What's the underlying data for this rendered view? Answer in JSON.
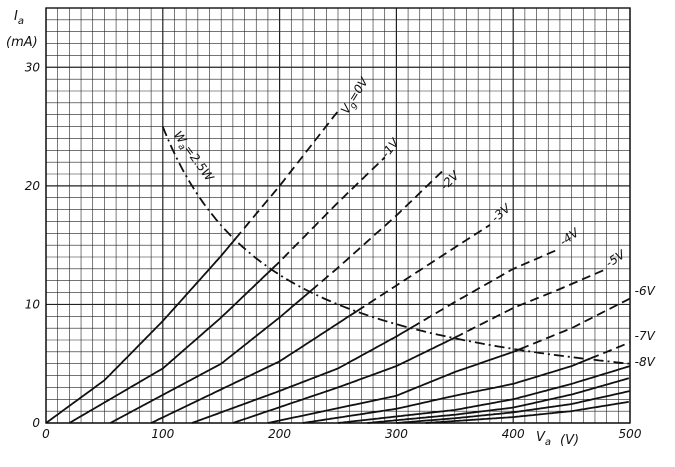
{
  "chart_data": {
    "type": "line",
    "title": "",
    "xlabel": "V_a (V)",
    "ylabel": "I_a (mA)",
    "xlim": [
      0,
      500
    ],
    "ylim": [
      0,
      35
    ],
    "grid": true,
    "x_ticks": [
      "0",
      "100",
      "200",
      "300",
      "400",
      "500"
    ],
    "y_ticks": [
      "0",
      "10",
      "20",
      "30"
    ],
    "axis_labels": {
      "y_symbol": "I",
      "y_sub": "a",
      "y_unit": "(mA)",
      "x_symbol": "V",
      "x_sub": "a",
      "x_unit": "(V)"
    },
    "series": [
      {
        "name": "Vg = 0V",
        "label": "=0V",
        "label_prefix": "V",
        "label_sub": "g",
        "style": "solid-then-dashed",
        "points": [
          [
            0,
            0
          ],
          [
            50,
            3.6
          ],
          [
            100,
            8.6
          ],
          [
            150,
            14.1
          ],
          [
            200,
            20
          ],
          [
            250,
            26.3
          ]
        ]
      },
      {
        "name": "-1V",
        "label": "-1V",
        "style": "solid-then-dashed",
        "points": [
          [
            20,
            0
          ],
          [
            100,
            4.6
          ],
          [
            150,
            8.9
          ],
          [
            200,
            13.6
          ],
          [
            250,
            18.6
          ],
          [
            290,
            22.4
          ]
        ]
      },
      {
        "name": "-2V",
        "label": "-2V",
        "style": "solid-then-dashed",
        "points": [
          [
            55,
            0
          ],
          [
            150,
            5
          ],
          [
            200,
            8.9
          ],
          [
            250,
            13.1
          ],
          [
            300,
            17.5
          ],
          [
            340,
            21.3
          ]
        ]
      },
      {
        "name": "-3V",
        "label": "-3V",
        "style": "solid-then-dashed",
        "points": [
          [
            90,
            0
          ],
          [
            200,
            5.2
          ],
          [
            250,
            8.4
          ],
          [
            300,
            11.6
          ],
          [
            350,
            14.8
          ],
          [
            380,
            16.7
          ]
        ]
      },
      {
        "name": "-4V",
        "label": "-4V",
        "style": "solid-then-dashed",
        "points": [
          [
            125,
            0
          ],
          [
            200,
            2.7
          ],
          [
            250,
            4.6
          ],
          [
            300,
            7.3
          ],
          [
            350,
            10.2
          ],
          [
            400,
            13
          ],
          [
            440,
            14.7
          ]
        ]
      },
      {
        "name": "-5V",
        "label": "-5V",
        "style": "solid-then-dashed",
        "points": [
          [
            160,
            0
          ],
          [
            250,
            3
          ],
          [
            300,
            4.8
          ],
          [
            350,
            7.2
          ],
          [
            400,
            9.7
          ],
          [
            440,
            11.3
          ],
          [
            480,
            13
          ]
        ]
      },
      {
        "name": "-6V",
        "label": "-6V",
        "style": "solid-then-dashed",
        "points": [
          [
            190,
            0
          ],
          [
            300,
            2.3
          ],
          [
            350,
            4.3
          ],
          [
            400,
            6
          ],
          [
            450,
            8
          ],
          [
            500,
            10.5
          ]
        ]
      },
      {
        "name": "-7V",
        "label": "-7V",
        "style": "solid-then-dashed",
        "points": [
          [
            220,
            0
          ],
          [
            300,
            1.2
          ],
          [
            350,
            2.3
          ],
          [
            400,
            3.3
          ],
          [
            450,
            4.8
          ],
          [
            500,
            6.8
          ]
        ]
      },
      {
        "name": "-8V",
        "label": "-8V",
        "style": "solid",
        "points": [
          [
            250,
            0
          ],
          [
            350,
            1.1
          ],
          [
            400,
            2
          ],
          [
            450,
            3.3
          ],
          [
            500,
            4.8
          ]
        ]
      },
      {
        "name": "",
        "label": "",
        "style": "solid",
        "points": [
          [
            275,
            0
          ],
          [
            350,
            0.7
          ],
          [
            400,
            1.3
          ],
          [
            450,
            2.4
          ],
          [
            500,
            3.8
          ]
        ]
      },
      {
        "name": "",
        "label": "",
        "style": "solid",
        "points": [
          [
            300,
            0
          ],
          [
            350,
            0.4
          ],
          [
            400,
            0.9
          ],
          [
            450,
            1.6
          ],
          [
            500,
            2.7
          ]
        ]
      },
      {
        "name": "",
        "label": "",
        "style": "solid",
        "points": [
          [
            325,
            0
          ],
          [
            400,
            0.5
          ],
          [
            450,
            1.0
          ],
          [
            500,
            1.8
          ]
        ]
      }
    ],
    "power_curve": {
      "name": "Wa = 2.5W",
      "label_prefix": "W",
      "label_sub": "a",
      "label_text": "=2.5W",
      "watts": 2.5,
      "style": "dash-dot",
      "x_range": [
        100,
        500
      ]
    },
    "colors": {
      "line": "#111111",
      "grid": "#222222",
      "background": "#ffffff"
    }
  }
}
